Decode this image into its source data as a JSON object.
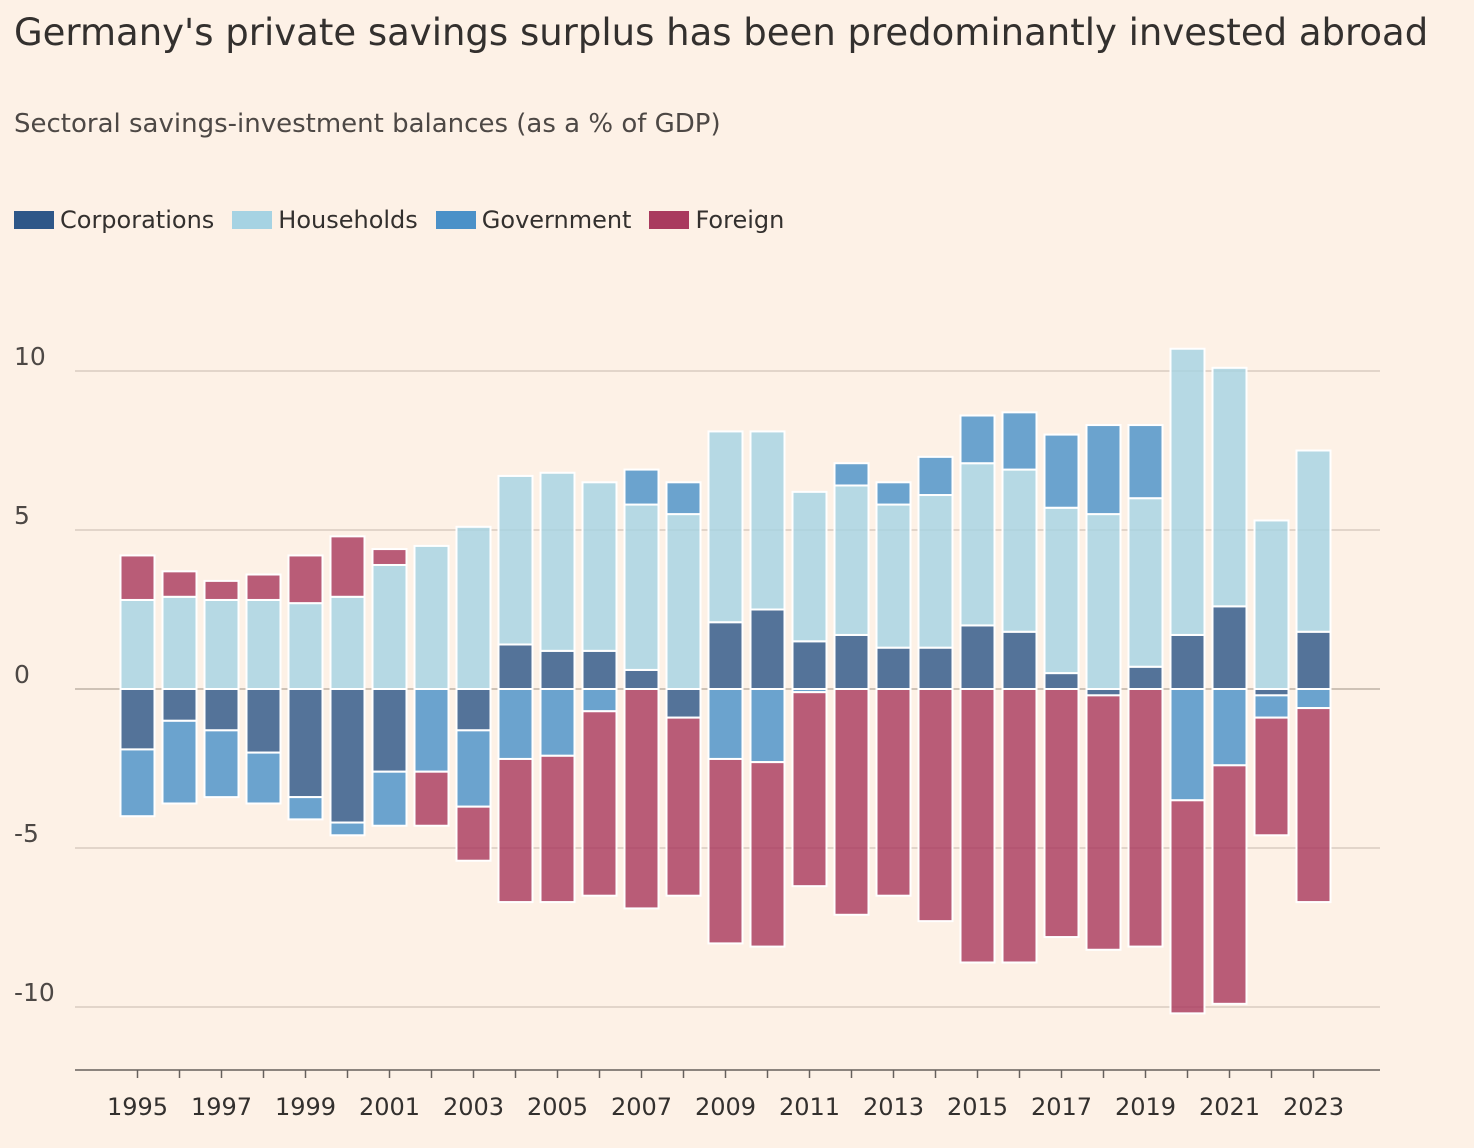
{
  "title": "Germany's private savings surplus has been predominantly invested abroad",
  "subtitle": "Sectoral savings-investment balances (as a % of GDP)",
  "colors": {
    "background": "#fdf1e6",
    "gridline": "#d9ccc1",
    "axis": "#66605c",
    "text": "#33302e"
  },
  "chart_data": {
    "type": "bar",
    "stacked": true,
    "ylim": [
      -12,
      11.5
    ],
    "yticks": [
      10,
      5,
      0,
      -5,
      -10
    ],
    "ytick_labels": [
      "10",
      "5",
      "0",
      "-5",
      "-10"
    ],
    "grid": true,
    "legend_position": "top-left",
    "categories": [
      "1995",
      "1996",
      "1997",
      "1998",
      "1999",
      "2000",
      "2001",
      "2002",
      "2003",
      "2004",
      "2005",
      "2006",
      "2007",
      "2008",
      "2009",
      "2010",
      "2011",
      "2012",
      "2013",
      "2014",
      "2015",
      "2016",
      "2017",
      "2018",
      "2019",
      "2020",
      "2021",
      "2022",
      "2023"
    ],
    "xtick_labels": [
      "1995",
      "1997",
      "1999",
      "2001",
      "2003",
      "2005",
      "2007",
      "2009",
      "2011",
      "2013",
      "2015",
      "2017",
      "2019",
      "2021",
      "2023"
    ],
    "series": [
      {
        "name": "Corporations",
        "color": "#2e5788",
        "values": [
          -1.9,
          -1.0,
          -1.3,
          -2.0,
          -3.4,
          -4.2,
          -2.6,
          0.0,
          -1.3,
          1.4,
          1.2,
          1.2,
          0.6,
          -0.9,
          2.1,
          2.5,
          1.5,
          1.7,
          1.3,
          1.3,
          2.0,
          1.8,
          0.5,
          -0.2,
          0.7,
          1.7,
          2.6,
          -0.2,
          1.8
        ]
      },
      {
        "name": "Households",
        "color": "#a6d3e3",
        "values": [
          2.8,
          2.9,
          2.8,
          2.8,
          2.7,
          2.9,
          3.9,
          4.5,
          5.1,
          5.3,
          5.6,
          5.3,
          5.2,
          5.5,
          6.0,
          5.6,
          4.7,
          4.7,
          4.5,
          4.8,
          5.1,
          5.1,
          5.2,
          5.5,
          5.3,
          9.0,
          7.5,
          5.3,
          5.7
        ]
      },
      {
        "name": "Government",
        "color": "#4b91c8",
        "values": [
          -2.1,
          -2.6,
          -2.1,
          -1.6,
          -0.7,
          -0.4,
          -1.7,
          -2.6,
          -2.4,
          -2.2,
          -2.1,
          -0.7,
          1.1,
          1.0,
          -2.2,
          -2.3,
          -0.1,
          0.7,
          0.7,
          1.2,
          1.5,
          1.8,
          2.3,
          2.8,
          2.3,
          -3.5,
          -2.4,
          -0.7,
          -0.6
        ]
      },
      {
        "name": "Foreign",
        "color": "#a93a5e",
        "values": [
          1.4,
          0.8,
          0.6,
          0.8,
          1.5,
          1.9,
          0.5,
          -1.7,
          -1.7,
          -4.5,
          -4.6,
          -5.8,
          -6.9,
          -5.6,
          -5.8,
          -5.8,
          -6.1,
          -7.1,
          -6.5,
          -7.3,
          -8.6,
          -8.6,
          -7.8,
          -8.0,
          -8.1,
          -6.7,
          -7.5,
          -3.7,
          -6.1
        ]
      }
    ]
  }
}
